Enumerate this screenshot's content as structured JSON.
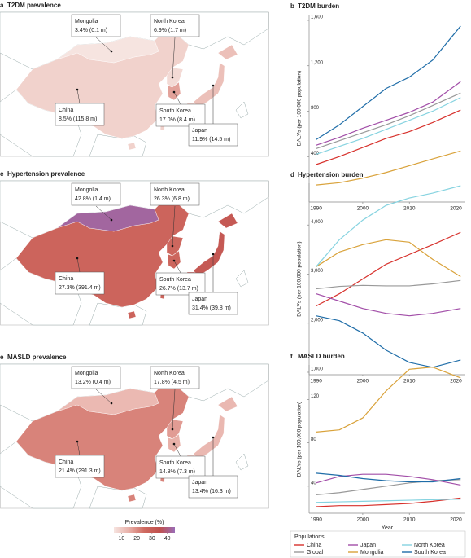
{
  "maps": [
    {
      "panel": "a",
      "title": "T2DM prevalence",
      "countries": [
        {
          "name": "Mongolia",
          "value": 3.4,
          "label": "3.4% (0.1 m)"
        },
        {
          "name": "North Korea",
          "value": 6.9,
          "label": "6.9% (1.7 m)"
        },
        {
          "name": "China",
          "value": 8.5,
          "label": "8.5% (115.8 m)"
        },
        {
          "name": "South Korea",
          "value": 17.0,
          "label": "17.0% (8.4 m)"
        },
        {
          "name": "Japan",
          "value": 11.9,
          "label": "11.9% (14.5 m)"
        }
      ]
    },
    {
      "panel": "c",
      "title": "Hypertension prevalence",
      "countries": [
        {
          "name": "Mongolia",
          "value": 42.8,
          "label": "42.8% (1.4 m)"
        },
        {
          "name": "North Korea",
          "value": 26.3,
          "label": "26.3% (6.8 m)"
        },
        {
          "name": "China",
          "value": 27.3,
          "label": "27.3% (391.4 m)"
        },
        {
          "name": "South Korea",
          "value": 26.7,
          "label": "26.7% (13.7 m)"
        },
        {
          "name": "Japan",
          "value": 31.4,
          "label": "31.4% (39.8 m)"
        }
      ]
    },
    {
      "panel": "e",
      "title": "MASLD prevalence",
      "countries": [
        {
          "name": "Mongolia",
          "value": 13.2,
          "label": "13.2% (0.4 m)"
        },
        {
          "name": "North Korea",
          "value": 17.8,
          "label": "17.8% (4.5 m)"
        },
        {
          "name": "China",
          "value": 21.4,
          "label": "21.4% (291.3 m)"
        },
        {
          "name": "South Korea",
          "value": 14.8,
          "label": "14.8% (7.3 m)"
        },
        {
          "name": "Japan",
          "value": 13.4,
          "label": "13.4% (16.3 m)"
        }
      ]
    }
  ],
  "colorbar": {
    "label": "Prevalence (%)",
    "lim": [
      5,
      45
    ],
    "ticks": [
      10,
      20,
      30,
      40
    ],
    "colors": [
      "#f6e4e0",
      "#e8b0a8",
      "#cf6a60",
      "#c0504d",
      "#9a6cb6"
    ]
  },
  "chart_data": [
    {
      "type": "line",
      "panel": "b",
      "title": "T2DM burden",
      "ylabel": "DALYs (per 100,000 population)",
      "x": [
        1990,
        1995,
        2000,
        2005,
        2010,
        2015,
        2021
      ],
      "xlim": [
        1988.5,
        2022
      ],
      "xticks": [
        1990,
        2000,
        2010,
        2020
      ],
      "ylim": [
        0,
        1650
      ],
      "yticks": [
        400,
        800,
        {
          "value": 1200,
          "label": "1,200"
        },
        {
          "value": 1600,
          "label": "1,600"
        }
      ],
      "series": [
        {
          "color": "#d7312c",
          "values": [
            330,
            400,
            480,
            560,
            620,
            700,
            810
          ]
        },
        {
          "color": "#999999",
          "values": [
            470,
            540,
            610,
            680,
            760,
            850,
            960
          ]
        },
        {
          "color": "#a24ea8",
          "values": [
            500,
            570,
            650,
            720,
            790,
            880,
            1060
          ]
        },
        {
          "color": "#d9a23a",
          "values": [
            150,
            170,
            210,
            260,
            320,
            380,
            450
          ]
        },
        {
          "color": "#86d3e0",
          "values": [
            420,
            490,
            560,
            640,
            720,
            800,
            920
          ]
        },
        {
          "color": "#1f6da8",
          "values": [
            550,
            680,
            840,
            1000,
            1100,
            1250,
            1550
          ]
        }
      ]
    },
    {
      "type": "line",
      "panel": "d",
      "title": "Hypertension burden",
      "ylabel": "DALYs (per 100,000 population)",
      "x": [
        1990,
        1995,
        2000,
        2005,
        2010,
        2015,
        2021
      ],
      "xlim": [
        1988.5,
        2022
      ],
      "xticks": [
        1990,
        2000,
        2010,
        2020
      ],
      "ylim": [
        950,
        4850
      ],
      "yticks": [
        {
          "value": 1000,
          "label": "1,000"
        },
        {
          "value": 2000,
          "label": "2,000"
        },
        {
          "value": 3000,
          "label": "3,000"
        },
        {
          "value": 4000,
          "label": "4,000"
        }
      ],
      "series": [
        {
          "color": "#d7312c",
          "values": [
            2350,
            2600,
            2900,
            3200,
            3400,
            3600,
            3850
          ]
        },
        {
          "color": "#999999",
          "values": [
            2700,
            2750,
            2770,
            2760,
            2760,
            2800,
            2870
          ]
        },
        {
          "color": "#a24ea8",
          "values": [
            2600,
            2450,
            2300,
            2200,
            2150,
            2200,
            2300
          ]
        },
        {
          "color": "#d9a23a",
          "values": [
            3150,
            3450,
            3600,
            3700,
            3650,
            3300,
            2950
          ]
        },
        {
          "color": "#86d3e0",
          "values": [
            3150,
            3700,
            4100,
            4400,
            4550,
            4650,
            4800
          ]
        },
        {
          "color": "#1f6da8",
          "values": [
            2150,
            2050,
            1800,
            1450,
            1200,
            1100,
            1250
          ]
        }
      ]
    },
    {
      "type": "line",
      "panel": "f",
      "title": "MASLD burden",
      "ylabel": "DALYs (per 100,000 population)",
      "xlabel": "Year",
      "x": [
        1990,
        1995,
        2000,
        2005,
        2010,
        2015,
        2021
      ],
      "xlim": [
        1988.5,
        2022
      ],
      "xticks": [
        1990,
        2000,
        2010,
        2020
      ],
      "ylim": [
        15,
        152
      ],
      "yticks": [
        40,
        80,
        120
      ],
      "legend_title": "Populations",
      "series": [
        {
          "name": "China",
          "color": "#d7312c",
          "values": [
            21,
            22,
            22,
            23,
            24,
            26,
            29
          ]
        },
        {
          "name": "Global",
          "color": "#999999",
          "values": [
            32,
            34,
            37,
            40,
            43,
            45,
            46
          ]
        },
        {
          "name": "Japan",
          "color": "#a24ea8",
          "values": [
            43,
            49,
            51,
            51,
            49,
            46,
            41
          ]
        },
        {
          "name": "Mongolia",
          "color": "#d9a23a",
          "values": [
            90,
            92,
            103,
            128,
            148,
            150,
            140
          ]
        },
        {
          "name": "North Korea",
          "color": "#86d3e0",
          "values": [
            25,
            25.5,
            26,
            26.5,
            27,
            27.5,
            28
          ]
        },
        {
          "name": "South Korea",
          "color": "#1f6da8",
          "values": [
            52,
            50,
            47,
            45,
            44,
            44,
            47
          ]
        }
      ]
    }
  ]
}
